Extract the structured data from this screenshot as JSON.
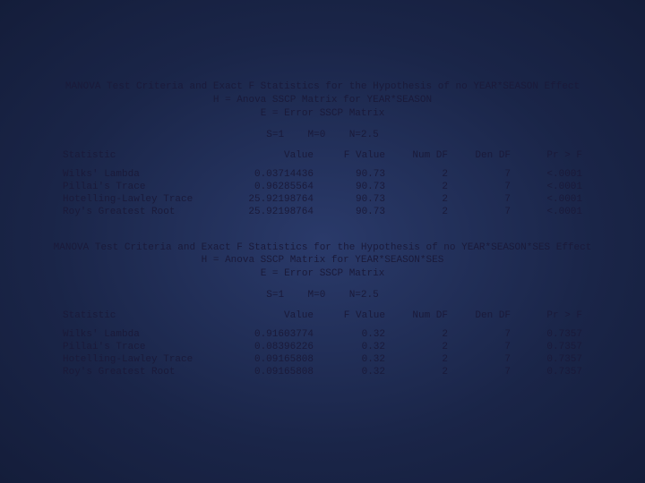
{
  "text_color": "#1a1a3a",
  "background_gradient": [
    "#2a3a6a",
    "#1a2548",
    "#141d3a"
  ],
  "font_family": "Courier New",
  "font_size_pt": 11,
  "manova_blocks": [
    {
      "title_lines": [
        "MANOVA Test Criteria and Exact F Statistics for the Hypothesis of no YEAR*SEASON Effect",
        "H = Anova SSCP Matrix for YEAR*SEASON",
        "E = Error SSCP Matrix"
      ],
      "params_line": "S=1    M=0    N=2.5",
      "columns": [
        "Statistic",
        "Value",
        "F Value",
        "Num DF",
        "Den DF",
        "Pr > F"
      ],
      "rows": [
        {
          "stat": "Wilks' Lambda",
          "value": "0.03714436",
          "f": "90.73",
          "numdf": "2",
          "dendf": "7",
          "pr": "<.0001"
        },
        {
          "stat": "Pillai's Trace",
          "value": "0.96285564",
          "f": "90.73",
          "numdf": "2",
          "dendf": "7",
          "pr": "<.0001"
        },
        {
          "stat": "Hotelling-Lawley Trace",
          "value": "25.92198764",
          "f": "90.73",
          "numdf": "2",
          "dendf": "7",
          "pr": "<.0001"
        },
        {
          "stat": "Roy's Greatest Root",
          "value": "25.92198764",
          "f": "90.73",
          "numdf": "2",
          "dendf": "7",
          "pr": "<.0001"
        }
      ]
    },
    {
      "title_lines": [
        "MANOVA Test Criteria and Exact F Statistics for the Hypothesis of no YEAR*SEASON*SES Effect",
        "H = Anova SSCP Matrix for YEAR*SEASON*SES",
        "E = Error SSCP Matrix"
      ],
      "params_line": "S=1    M=0    N=2.5",
      "columns": [
        "Statistic",
        "Value",
        "F Value",
        "Num DF",
        "Den DF",
        "Pr > F"
      ],
      "rows": [
        {
          "stat": "Wilks' Lambda",
          "value": "0.91603774",
          "f": "0.32",
          "numdf": "2",
          "dendf": "7",
          "pr": "0.7357"
        },
        {
          "stat": "Pillai's Trace",
          "value": "0.08396226",
          "f": "0.32",
          "numdf": "2",
          "dendf": "7",
          "pr": "0.7357"
        },
        {
          "stat": "Hotelling-Lawley Trace",
          "value": "0.09165808",
          "f": "0.32",
          "numdf": "2",
          "dendf": "7",
          "pr": "0.7357"
        },
        {
          "stat": "Roy's Greatest Root",
          "value": "0.09165808",
          "f": "0.32",
          "numdf": "2",
          "dendf": "7",
          "pr": "0.7357"
        }
      ]
    }
  ]
}
